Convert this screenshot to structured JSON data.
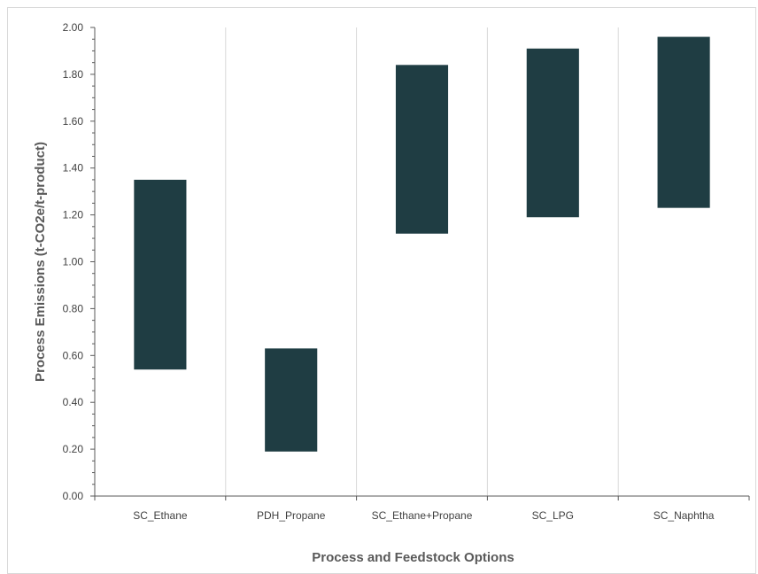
{
  "chart_data": {
    "type": "bar",
    "subtype": "floating-range",
    "categories": [
      "SC_Ethane",
      "PDH_Propane",
      "SC_Ethane+Propane",
      "SC_LPG",
      "SC_Naphtha"
    ],
    "series": [
      {
        "low": [
          0.54,
          0.19,
          1.12,
          1.19,
          1.23
        ],
        "high": [
          1.35,
          0.63,
          1.84,
          1.91,
          1.96
        ],
        "color": "#1f3d43"
      }
    ],
    "xlabel": "Process and Feedstock Options",
    "ylabel": "Process Emissions (t-CO2e/t-product)",
    "ylim": [
      0,
      2.0
    ],
    "y_major_step": 0.2,
    "y_minor_step": 0.05,
    "y_tick_labels": [
      "0.00",
      "0.20",
      "0.40",
      "0.60",
      "0.80",
      "1.00",
      "1.20",
      "1.40",
      "1.60",
      "1.80",
      "2.00"
    ],
    "grid": "vertical category separators",
    "legend": "none"
  }
}
